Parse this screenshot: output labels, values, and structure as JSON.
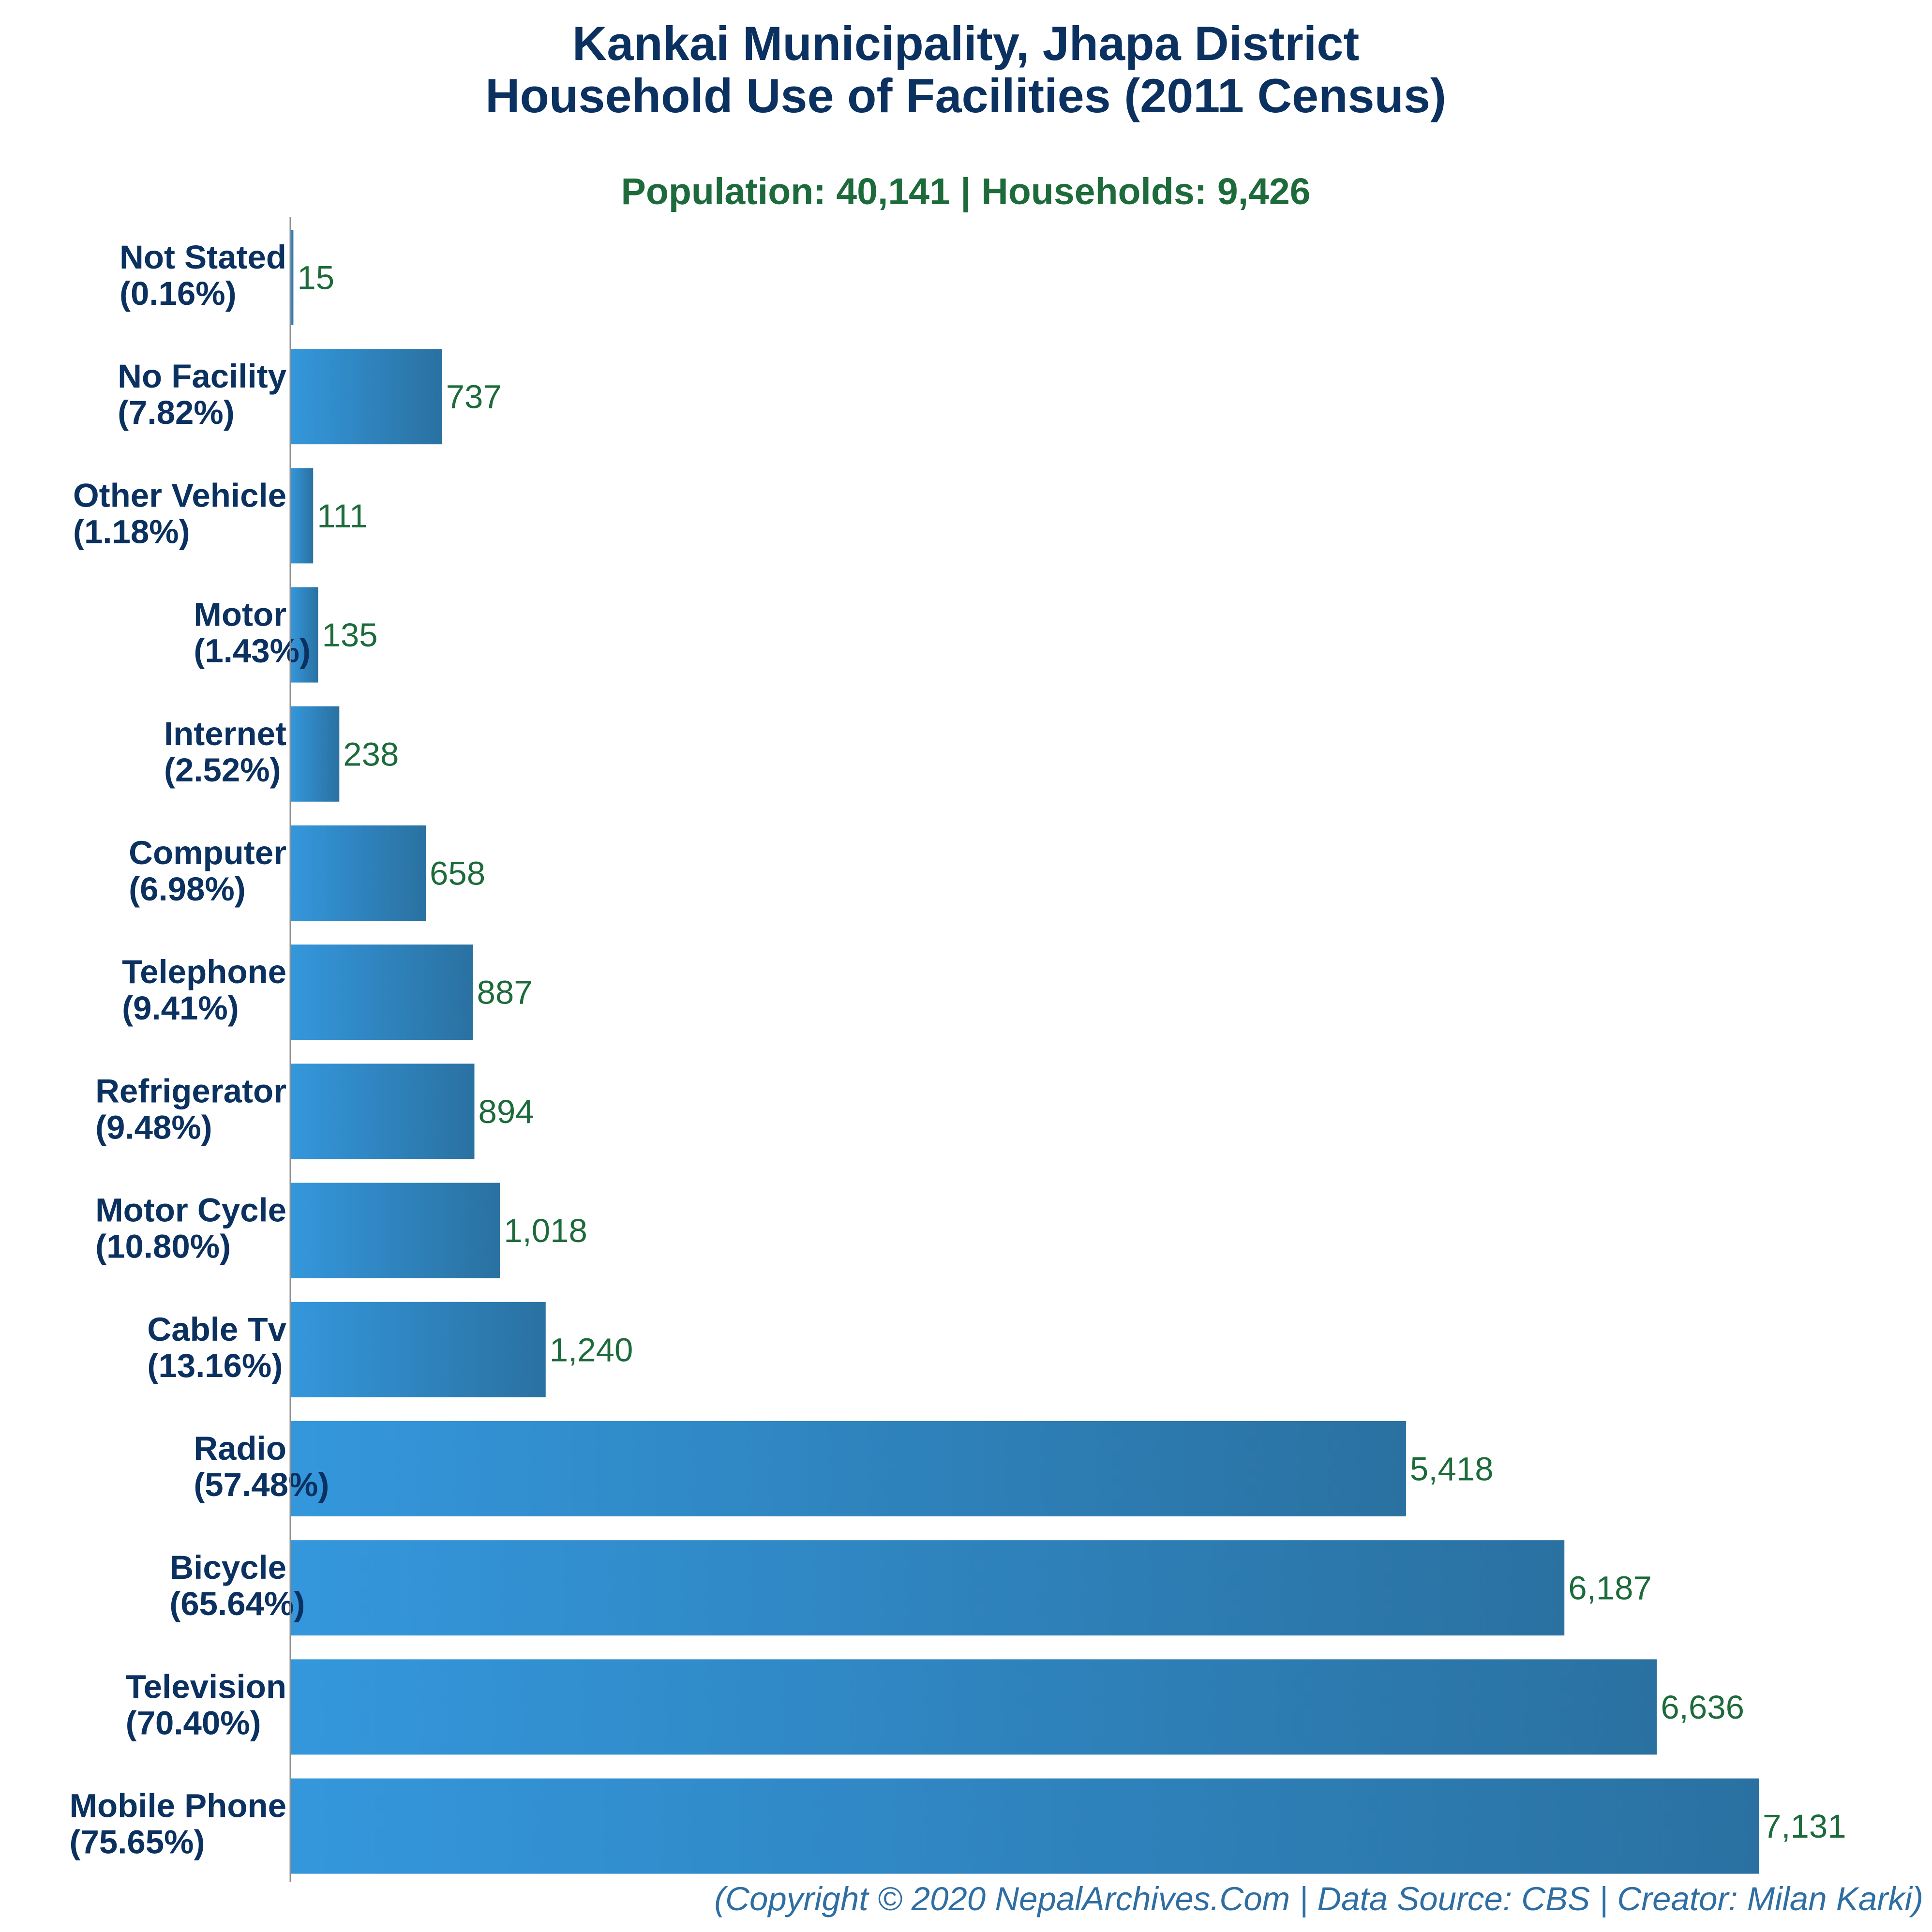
{
  "title_line1": "Kankai Municipality, Jhapa District",
  "title_line2": "Household Use of Facilities (2011 Census)",
  "subtitle": "Population: 40,141 | Households: 9,426",
  "footer": "(Copyright © 2020 NepalArchives.Com | Data Source: CBS | Creator: Milan Karki)",
  "colors": {
    "bar_start": "#3497dc",
    "bar_end": "#2a71a1",
    "title": "#0b3160",
    "subtitle": "#1d6b3b",
    "value_label": "#1d6b3b",
    "footer": "#2f6ea3"
  },
  "chart_data": {
    "type": "bar",
    "orientation": "horizontal",
    "title": "Kankai Municipality, Jhapa District Household Use of Facilities (2011 Census)",
    "xlabel": "",
    "ylabel": "",
    "xlim": [
      0,
      7131
    ],
    "grid": false,
    "categories": [
      "Not Stated",
      "No Facility",
      "Other Vehicle",
      "Motor",
      "Internet",
      "Computer",
      "Telephone",
      "Refrigerator",
      "Motor Cycle",
      "Cable Tv",
      "Radio",
      "Bicycle",
      "Television",
      "Mobile Phone"
    ],
    "percent_labels": [
      "(0.16%)",
      "(7.82%)",
      "(1.18%)",
      "(1.43%)",
      "(2.52%)",
      "(6.98%)",
      "(9.41%)",
      "(9.48%)",
      "(10.80%)",
      "(13.16%)",
      "(57.48%)",
      "(65.64%)",
      "(70.40%)",
      "(75.65%)"
    ],
    "values": [
      15,
      737,
      111,
      135,
      238,
      658,
      887,
      894,
      1018,
      1240,
      5418,
      6187,
      6636,
      7131
    ],
    "value_labels": [
      "15",
      "737",
      "111",
      "135",
      "238",
      "658",
      "887",
      "894",
      "1,018",
      "1,240",
      "5,418",
      "6,187",
      "6,636",
      "7,131"
    ]
  }
}
